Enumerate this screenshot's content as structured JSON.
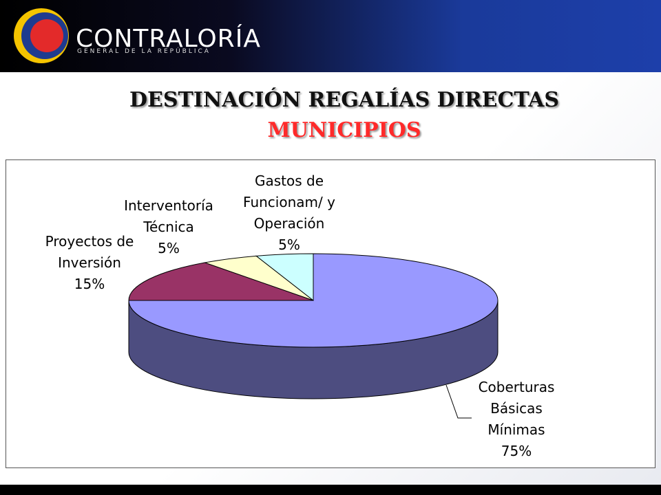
{
  "header": {
    "brand": "CONTRALORÍA",
    "subbrand": "GENERAL DE LA REPÚBLICA"
  },
  "chart_data": {
    "type": "pie3d",
    "title": "DESTINACIÓN REGALÍAS DIRECTAS",
    "subtitle": "MUNICIPIOS",
    "categories": [
      "Coberturas Básicas Mínimas",
      "Proyectos de Inversión",
      "Interventoría Técnica",
      "Gastos de Funcionam/ y Operación"
    ],
    "values": [
      75,
      15,
      5,
      5
    ],
    "value_labels": [
      "75%",
      "15%",
      "5%",
      "5%"
    ],
    "colors": [
      "#9999ff",
      "#993366",
      "#ffffcc",
      "#ccffff"
    ],
    "side_colors": [
      "#4d4d80",
      "#4d1a33",
      "#80806a",
      "#6a8080"
    ]
  }
}
